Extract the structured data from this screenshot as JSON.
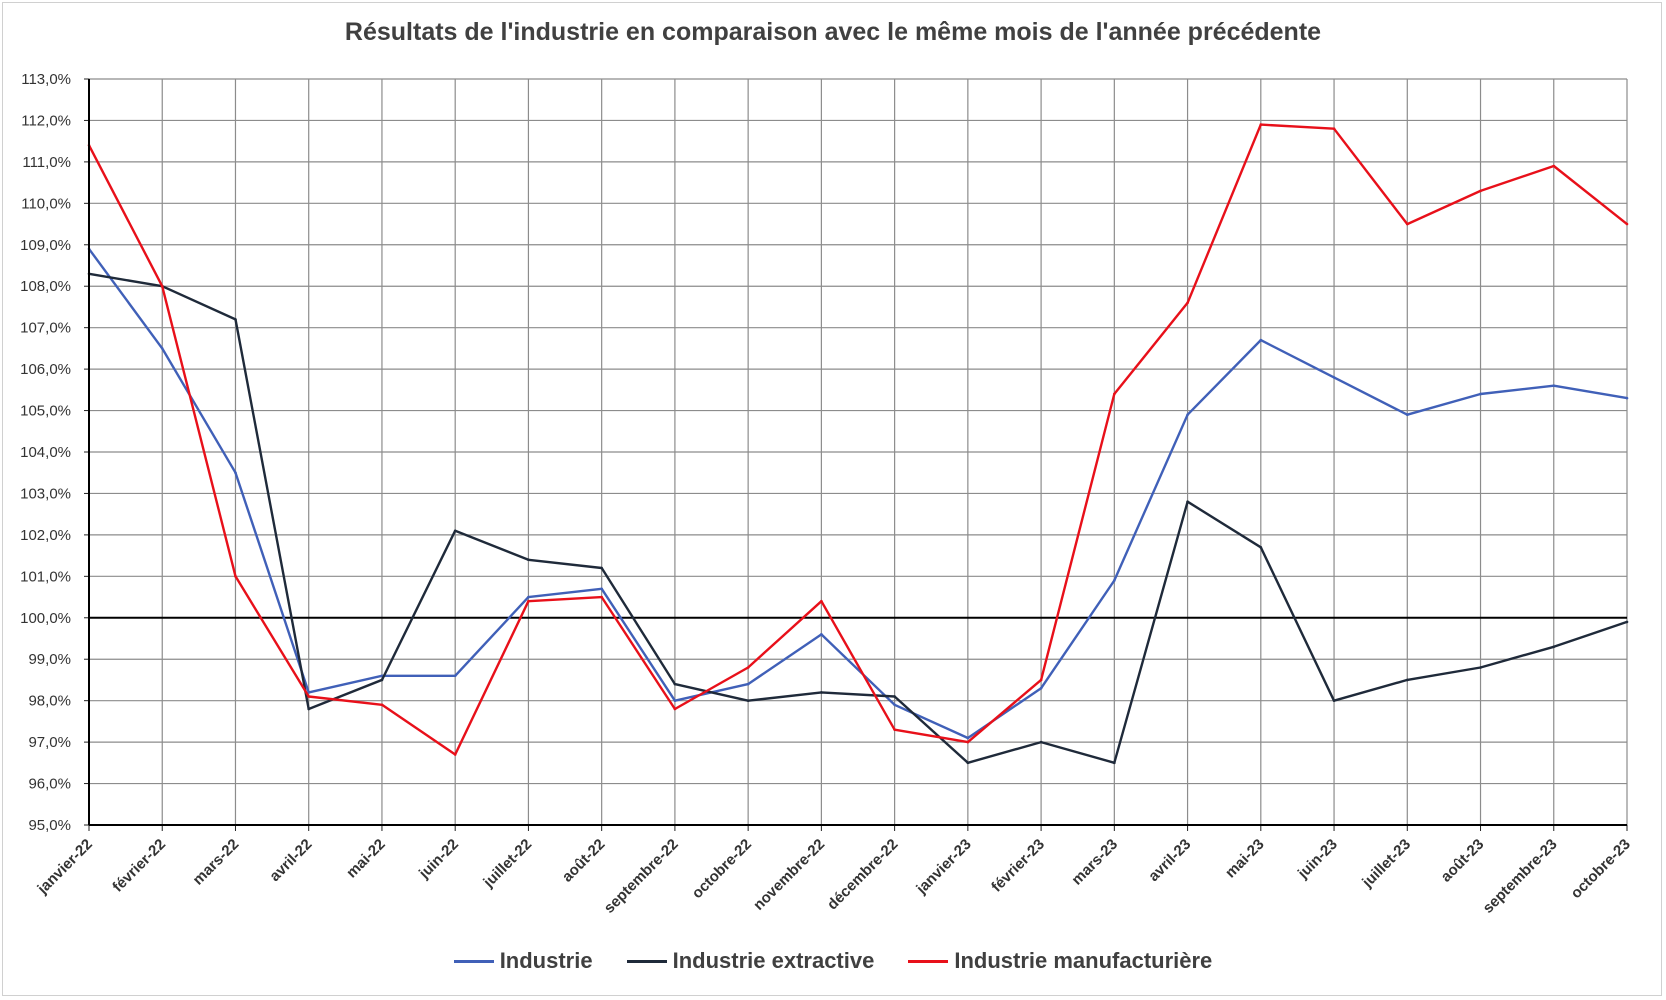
{
  "chart_data": {
    "type": "line",
    "title": "Résultats de l'industrie en comparaison avec le même mois de l'année précédente",
    "xlabel": "",
    "ylabel": "",
    "categories": [
      "janvier-22",
      "février-22",
      "mars-22",
      "avril-22",
      "mai-22",
      "juin-22",
      "juillet-22",
      "août-22",
      "septembre-22",
      "octobre-22",
      "novembre-22",
      "décembre-22",
      "janvier-23",
      "février-23",
      "mars-23",
      "avril-23",
      "mai-23",
      "juin-23",
      "juillet-23",
      "août-23",
      "septembre-23",
      "octobre-23"
    ],
    "ylim": [
      95,
      113
    ],
    "y_tick_step": 1,
    "y_tick_labels": [
      "95,0%",
      "96,0%",
      "97,0%",
      "98,0%",
      "99,0%",
      "100,0%",
      "101,0%",
      "102,0%",
      "103,0%",
      "104,0%",
      "105,0%",
      "106,0%",
      "107,0%",
      "108,0%",
      "109,0%",
      "110,0%",
      "111,0%",
      "112,0%",
      "113,0%"
    ],
    "reference_line": 100,
    "grid": true,
    "legend_position": "bottom",
    "series": [
      {
        "name": "Industrie",
        "color": "#4060b8",
        "values": [
          108.9,
          106.5,
          103.5,
          98.2,
          98.6,
          98.6,
          100.5,
          100.7,
          98.0,
          98.4,
          99.6,
          97.9,
          97.1,
          98.3,
          100.9,
          104.9,
          106.7,
          105.8,
          104.9,
          105.4,
          105.6,
          105.3
        ]
      },
      {
        "name": "Industrie extractive",
        "color": "#1f2a3a",
        "values": [
          108.3,
          108.0,
          107.2,
          97.8,
          98.5,
          102.1,
          101.4,
          101.2,
          98.4,
          98.0,
          98.2,
          98.1,
          96.5,
          97.0,
          96.5,
          102.8,
          101.7,
          98.0,
          98.5,
          98.8,
          99.3,
          99.9
        ]
      },
      {
        "name": "Industrie manufacturière",
        "color": "#e8101a",
        "values": [
          111.4,
          108.0,
          101.0,
          98.1,
          97.9,
          96.7,
          100.4,
          100.5,
          97.8,
          98.8,
          100.4,
          97.3,
          97.0,
          98.5,
          105.4,
          107.6,
          111.9,
          111.8,
          109.5,
          110.3,
          110.9,
          109.5
        ]
      }
    ]
  }
}
